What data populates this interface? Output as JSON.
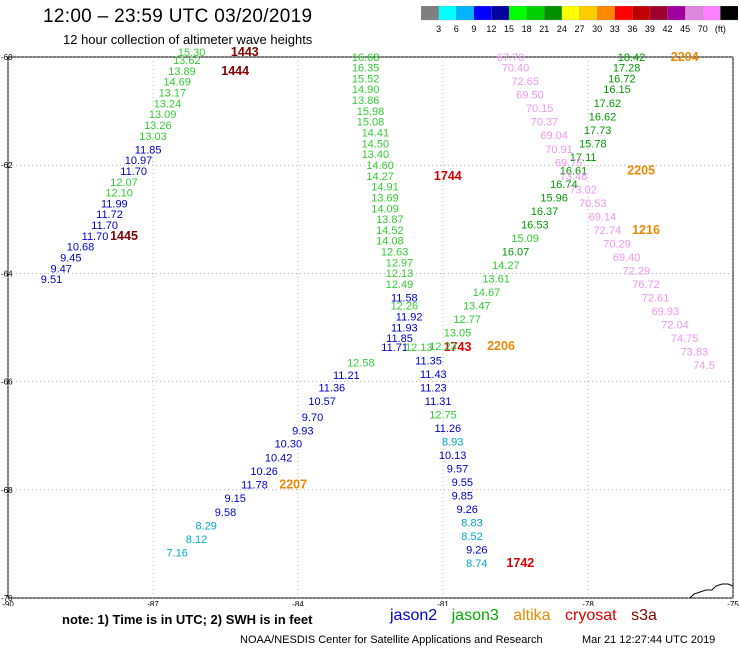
{
  "title": "12:00 – 23:59 UTC 03/20/2019",
  "subtitle": "12 hour collection of altimeter wave heights",
  "colorbar": {
    "colors": [
      "#7f7f7f",
      "#00ffff",
      "#00b4ff",
      "#0000ff",
      "#0000a0",
      "#00ff00",
      "#00d000",
      "#009000",
      "#ffff00",
      "#ffcc00",
      "#ff8800",
      "#ff0000",
      "#c00000",
      "#a00030",
      "#a000a0",
      "#dd88dd",
      "#ff80ff",
      "#000000"
    ],
    "labels": [
      "3",
      "6",
      "9",
      "12",
      "15",
      "18",
      "21",
      "24",
      "27",
      "30",
      "33",
      "36",
      "39",
      "42",
      "45",
      "70",
      "(ft)"
    ]
  },
  "axes": {
    "lon_ticks": [
      "-90",
      "-87",
      "-84",
      "-81",
      "-78",
      "-75"
    ],
    "lat_ticks": [
      "-60",
      "-62",
      "-64",
      "-66",
      "-68",
      "-70"
    ]
  },
  "tracks": {
    "altika_color": "#ee8800",
    "cryosat_color": "#dd0000",
    "s3a_color": "#800000",
    "track1_labels": [
      {
        "v": "15.30",
        "c": "#33cc33",
        "lon": -86.2,
        "lat": -59.98
      },
      {
        "v": "13.62",
        "c": "#33cc33",
        "lon": -86.3,
        "lat": -60.13
      },
      {
        "v": "13.89",
        "c": "#33cc33",
        "lon": -86.4,
        "lat": -60.33
      },
      {
        "v": "14.69",
        "c": "#33cc33",
        "lon": -86.5,
        "lat": -60.53
      },
      {
        "v": "13.17",
        "c": "#33cc33",
        "lon": -86.6,
        "lat": -60.73
      },
      {
        "v": "13.24",
        "c": "#33cc33",
        "lon": -86.7,
        "lat": -60.93
      },
      {
        "v": "13.09",
        "c": "#33cc33",
        "lon": -86.8,
        "lat": -61.13
      },
      {
        "v": "13.26",
        "c": "#33cc33",
        "lon": -86.9,
        "lat": -61.33
      },
      {
        "v": "13.03",
        "c": "#33cc33",
        "lon": -87.0,
        "lat": -61.53
      },
      {
        "v": "11.85",
        "c": "#0000cc",
        "lon": -87.1,
        "lat": -61.78
      },
      {
        "v": "10.97",
        "c": "#0000cc",
        "lon": -87.3,
        "lat": -61.98
      },
      {
        "v": "11.70",
        "c": "#0000cc",
        "lon": -87.4,
        "lat": -62.18
      },
      {
        "v": "12.07",
        "c": "#33cc33",
        "lon": -87.6,
        "lat": -62.38
      },
      {
        "v": "12.10",
        "c": "#33cc33",
        "lon": -87.7,
        "lat": -62.58
      },
      {
        "v": "11.99",
        "c": "#0000cc",
        "lon": -87.8,
        "lat": -62.78
      },
      {
        "v": "11.72",
        "c": "#0000cc",
        "lon": -87.9,
        "lat": -62.98
      },
      {
        "v": "11.70",
        "c": "#0000cc",
        "lon": -88.0,
        "lat": -63.18
      },
      {
        "v": "11.70",
        "c": "#0000cc",
        "lon": -88.2,
        "lat": -63.38
      },
      {
        "v": "10.68",
        "c": "#0000cc",
        "lon": -88.5,
        "lat": -63.58
      },
      {
        "v": "9.45",
        "c": "#0000cc",
        "lon": -88.7,
        "lat": -63.78
      },
      {
        "v": "9.47",
        "c": "#0000cc",
        "lon": -88.9,
        "lat": -63.98
      },
      {
        "v": "9.51",
        "c": "#0000cc",
        "lon": -89.1,
        "lat": -64.18
      }
    ],
    "track1_ids": [
      {
        "v": "1443",
        "c": "#800000",
        "lon": -85.1,
        "lat": -59.98
      },
      {
        "v": "1444",
        "c": "#800000",
        "lon": -85.3,
        "lat": -60.33
      },
      {
        "v": "1445",
        "c": "#800000",
        "lon": -87.6,
        "lat": -63.38
      }
    ],
    "track2_labels": [
      {
        "v": "16.68",
        "c": "#33cc33",
        "lon": -82.6,
        "lat": -60.07
      },
      {
        "v": "16.35",
        "c": "#33cc33",
        "lon": -82.6,
        "lat": -60.27
      },
      {
        "v": "15.52",
        "c": "#33cc33",
        "lon": -82.6,
        "lat": -60.47
      },
      {
        "v": "14.90",
        "c": "#33cc33",
        "lon": -82.6,
        "lat": -60.67
      },
      {
        "v": "13.86",
        "c": "#33cc33",
        "lon": -82.6,
        "lat": -60.87
      },
      {
        "v": "15.98",
        "c": "#33cc33",
        "lon": -82.5,
        "lat": -61.07
      },
      {
        "v": "15.08",
        "c": "#33cc33",
        "lon": -82.5,
        "lat": -61.27
      },
      {
        "v": "14.41",
        "c": "#33cc33",
        "lon": -82.4,
        "lat": -61.47
      },
      {
        "v": "14.50",
        "c": "#33cc33",
        "lon": -82.4,
        "lat": -61.67
      },
      {
        "v": "13.40",
        "c": "#33cc33",
        "lon": -82.4,
        "lat": -61.87
      },
      {
        "v": "14.60",
        "c": "#33cc33",
        "lon": -82.3,
        "lat": -62.07
      },
      {
        "v": "14.27",
        "c": "#33cc33",
        "lon": -82.3,
        "lat": -62.27
      },
      {
        "v": "14.91",
        "c": "#33cc33",
        "lon": -82.2,
        "lat": -62.47
      },
      {
        "v": "13.69",
        "c": "#33cc33",
        "lon": -82.2,
        "lat": -62.67
      },
      {
        "v": "14.09",
        "c": "#33cc33",
        "lon": -82.2,
        "lat": -62.87
      },
      {
        "v": "13.87",
        "c": "#33cc33",
        "lon": -82.1,
        "lat": -63.07
      },
      {
        "v": "14.52",
        "c": "#33cc33",
        "lon": -82.1,
        "lat": -63.27
      },
      {
        "v": "14.08",
        "c": "#33cc33",
        "lon": -82.1,
        "lat": -63.47
      },
      {
        "v": "12.63",
        "c": "#33cc33",
        "lon": -82.0,
        "lat": -63.67
      },
      {
        "v": "12.97",
        "c": "#33cc33",
        "lon": -81.9,
        "lat": -63.87
      },
      {
        "v": "12.13",
        "c": "#33cc33",
        "lon": -81.9,
        "lat": -64.07
      },
      {
        "v": "12.49",
        "c": "#33cc33",
        "lon": -81.9,
        "lat": -64.27
      },
      {
        "v": "11.58",
        "c": "#0000cc",
        "lon": -81.8,
        "lat": -64.52
      },
      {
        "v": "12.26",
        "c": "#33cc33",
        "lon": -81.8,
        "lat": -64.67
      },
      {
        "v": "11.92",
        "c": "#0000cc",
        "lon": -81.7,
        "lat": -64.87
      },
      {
        "v": "11.93",
        "c": "#0000cc",
        "lon": -81.8,
        "lat": -65.07
      },
      {
        "v": "11.85",
        "c": "#0000cc",
        "lon": -81.9,
        "lat": -65.27
      },
      {
        "v": "11.71",
        "c": "#0000cc",
        "lon": -82.0,
        "lat": -65.43
      }
    ],
    "track2_ids": [
      {
        "v": "1744",
        "c": "#dd0000",
        "lon": -80.9,
        "lat": -62.27
      }
    ],
    "track3_labels": [
      {
        "v": "12.58",
        "c": "#33cc33",
        "lon": -82.7,
        "lat": -65.72
      },
      {
        "v": "11.21",
        "c": "#0000cc",
        "lon": -83.0,
        "lat": -65.95
      },
      {
        "v": "11.36",
        "c": "#0000cc",
        "lon": -83.3,
        "lat": -66.18
      },
      {
        "v": "10.57",
        "c": "#0000cc",
        "lon": -83.5,
        "lat": -66.43
      },
      {
        "v": "9.70",
        "c": "#0000cc",
        "lon": -83.7,
        "lat": -66.73
      },
      {
        "v": "9.93",
        "c": "#0000cc",
        "lon": -83.9,
        "lat": -66.98
      },
      {
        "v": "10.30",
        "c": "#0000cc",
        "lon": -84.2,
        "lat": -67.22
      },
      {
        "v": "10.42",
        "c": "#0000cc",
        "lon": -84.4,
        "lat": -67.48
      },
      {
        "v": "10.26",
        "c": "#0000cc",
        "lon": -84.7,
        "lat": -67.73
      },
      {
        "v": "11.78",
        "c": "#0000cc",
        "lon": -84.9,
        "lat": -67.98
      },
      {
        "v": "9.15",
        "c": "#0000cc",
        "lon": -85.3,
        "lat": -68.23
      },
      {
        "v": "9.58",
        "c": "#0000cc",
        "lon": -85.5,
        "lat": -68.48
      },
      {
        "v": "8.29",
        "c": "#00aacc",
        "lon": -85.9,
        "lat": -68.73
      },
      {
        "v": "8.12",
        "c": "#00aacc",
        "lon": -86.1,
        "lat": -68.98
      },
      {
        "v": "7.16",
        "c": "#00aacc",
        "lon": -86.5,
        "lat": -69.23
      }
    ],
    "track3_ids": [
      {
        "v": "2207",
        "c": "#ee8800",
        "lon": -84.1,
        "lat": -67.98
      }
    ],
    "track4_labels": [
      {
        "v": "12.13",
        "c": "#33cc33",
        "lon": -81.5,
        "lat": -65.43
      },
      {
        "v": "11.35",
        "c": "#0000cc",
        "lon": -81.3,
        "lat": -65.68
      },
      {
        "v": "11.43",
        "c": "#0000cc",
        "lon": -81.2,
        "lat": -65.93
      },
      {
        "v": "11.23",
        "c": "#0000cc",
        "lon": -81.2,
        "lat": -66.18
      },
      {
        "v": "11.31",
        "c": "#0000cc",
        "lon": -81.1,
        "lat": -66.43
      },
      {
        "v": "12.75",
        "c": "#33cc33",
        "lon": -81.0,
        "lat": -66.68
      },
      {
        "v": "11.26",
        "c": "#0000cc",
        "lon": -80.9,
        "lat": -66.93
      },
      {
        "v": "8.93",
        "c": "#00aacc",
        "lon": -80.8,
        "lat": -67.18
      },
      {
        "v": "10.13",
        "c": "#0000cc",
        "lon": -80.8,
        "lat": -67.43
      },
      {
        "v": "9.57",
        "c": "#0000cc",
        "lon": -80.7,
        "lat": -67.68
      },
      {
        "v": "9.55",
        "c": "#0000cc",
        "lon": -80.6,
        "lat": -67.93
      },
      {
        "v": "9.85",
        "c": "#0000cc",
        "lon": -80.6,
        "lat": -68.18
      },
      {
        "v": "9.26",
        "c": "#0000cc",
        "lon": -80.5,
        "lat": -68.43
      },
      {
        "v": "8.83",
        "c": "#00aacc",
        "lon": -80.4,
        "lat": -68.68
      },
      {
        "v": "8.52",
        "c": "#00aacc",
        "lon": -80.4,
        "lat": -68.93
      },
      {
        "v": "9.26",
        "c": "#0000cc",
        "lon": -80.3,
        "lat": -69.18
      },
      {
        "v": "8.74",
        "c": "#00aacc",
        "lon": -80.3,
        "lat": -69.43
      }
    ],
    "track4_ids": [
      {
        "v": "1743",
        "c": "#dd0000",
        "lon": -80.7,
        "lat": -65.43
      },
      {
        "v": "1742",
        "c": "#dd0000",
        "lon": -79.4,
        "lat": -69.43
      }
    ],
    "track5_labels": [
      {
        "v": "18.42",
        "c": "#009900",
        "lon": -77.1,
        "lat": -60.07
      },
      {
        "v": "17.28",
        "c": "#009900",
        "lon": -77.2,
        "lat": -60.27
      },
      {
        "v": "16.72",
        "c": "#009900",
        "lon": -77.3,
        "lat": -60.47
      },
      {
        "v": "16.15",
        "c": "#009900",
        "lon": -77.4,
        "lat": -60.67
      },
      {
        "v": "17.62",
        "c": "#009900",
        "lon": -77.6,
        "lat": -60.92
      },
      {
        "v": "16.62",
        "c": "#009900",
        "lon": -77.7,
        "lat": -61.17
      },
      {
        "v": "17.73",
        "c": "#009900",
        "lon": -77.8,
        "lat": -61.42
      },
      {
        "v": "15.78",
        "c": "#009900",
        "lon": -77.9,
        "lat": -61.67
      },
      {
        "v": "17.11",
        "c": "#009900",
        "lon": -78.1,
        "lat": -61.92
      },
      {
        "v": "16.61",
        "c": "#009900",
        "lon": -78.3,
        "lat": -62.17
      },
      {
        "v": "16.74",
        "c": "#009900",
        "lon": -78.5,
        "lat": -62.42
      },
      {
        "v": "15.96",
        "c": "#009900",
        "lon": -78.7,
        "lat": -62.67
      },
      {
        "v": "16.37",
        "c": "#009900",
        "lon": -78.9,
        "lat": -62.92
      },
      {
        "v": "16.53",
        "c": "#009900",
        "lon": -79.1,
        "lat": -63.17
      },
      {
        "v": "15.09",
        "c": "#33cc33",
        "lon": -79.3,
        "lat": -63.42
      },
      {
        "v": "16.07",
        "c": "#009900",
        "lon": -79.5,
        "lat": -63.67
      },
      {
        "v": "14.27",
        "c": "#33cc33",
        "lon": -79.7,
        "lat": -63.92
      },
      {
        "v": "13.61",
        "c": "#33cc33",
        "lon": -79.9,
        "lat": -64.17
      },
      {
        "v": "14.67",
        "c": "#33cc33",
        "lon": -80.1,
        "lat": -64.42
      },
      {
        "v": "13.47",
        "c": "#33cc33",
        "lon": -80.3,
        "lat": -64.67
      },
      {
        "v": "12.77",
        "c": "#33cc33",
        "lon": -80.5,
        "lat": -64.92
      },
      {
        "v": "13.05",
        "c": "#33cc33",
        "lon": -80.7,
        "lat": -65.17
      },
      {
        "v": "12.23",
        "c": "#33cc33",
        "lon": -81.0,
        "lat": -65.42
      }
    ],
    "track5_ids": [
      {
        "v": "2204",
        "c": "#ee8800",
        "lon": -76.0,
        "lat": -60.07
      },
      {
        "v": "2205",
        "c": "#ee8800",
        "lon": -76.9,
        "lat": -62.17
      },
      {
        "v": "2206",
        "c": "#ee8800",
        "lon": -79.8,
        "lat": -65.42
      }
    ],
    "track6_labels": [
      {
        "v": "67.70",
        "c": "#ee99ee",
        "lon": -79.6,
        "lat": -60.07
      },
      {
        "v": "70.40",
        "c": "#ee99ee",
        "lon": -79.5,
        "lat": -60.27
      },
      {
        "v": "72.65",
        "c": "#ee99ee",
        "lon": -79.3,
        "lat": -60.52
      },
      {
        "v": "69.50",
        "c": "#ee99ee",
        "lon": -79.2,
        "lat": -60.77
      },
      {
        "v": "70.15",
        "c": "#ee99ee",
        "lon": -79.0,
        "lat": -61.02
      },
      {
        "v": "70.37",
        "c": "#ee99ee",
        "lon": -78.9,
        "lat": -61.27
      },
      {
        "v": "69.04",
        "c": "#ee99ee",
        "lon": -78.7,
        "lat": -61.52
      },
      {
        "v": "70.91",
        "c": "#ee99ee",
        "lon": -78.6,
        "lat": -61.77
      },
      {
        "v": "69.75",
        "c": "#ee99ee",
        "lon": -78.4,
        "lat": -62.02
      },
      {
        "v": "73.48",
        "c": "#ee99ee",
        "lon": -78.3,
        "lat": -62.27
      },
      {
        "v": "73.02",
        "c": "#ee99ee",
        "lon": -78.1,
        "lat": -62.52
      },
      {
        "v": "70.53",
        "c": "#ee99ee",
        "lon": -77.9,
        "lat": -62.77
      },
      {
        "v": "69.14",
        "c": "#ee99ee",
        "lon": -77.7,
        "lat": -63.02
      },
      {
        "v": "72.74",
        "c": "#ee99ee",
        "lon": -77.6,
        "lat": -63.27
      },
      {
        "v": "70.29",
        "c": "#ee99ee",
        "lon": -77.4,
        "lat": -63.52
      },
      {
        "v": "69.40",
        "c": "#ee99ee",
        "lon": -77.2,
        "lat": -63.77
      },
      {
        "v": "72.29",
        "c": "#ee99ee",
        "lon": -77.0,
        "lat": -64.02
      },
      {
        "v": "76.72",
        "c": "#ee99ee",
        "lon": -76.8,
        "lat": -64.27
      },
      {
        "v": "72.61",
        "c": "#ee99ee",
        "lon": -76.6,
        "lat": -64.52
      },
      {
        "v": "69.93",
        "c": "#ee99ee",
        "lon": -76.4,
        "lat": -64.77
      },
      {
        "v": "72.04",
        "c": "#ee99ee",
        "lon": -76.2,
        "lat": -65.02
      },
      {
        "v": "74.75",
        "c": "#ee99ee",
        "lon": -76.0,
        "lat": -65.27
      },
      {
        "v": "73.83",
        "c": "#ee99ee",
        "lon": -75.8,
        "lat": -65.52
      },
      {
        "v": "74.5",
        "c": "#ee99ee",
        "lon": -75.6,
        "lat": -65.77
      }
    ],
    "track6_ids": [
      {
        "v": "1216",
        "c": "#ee8800",
        "lon": -76.8,
        "lat": -63.27
      }
    ]
  },
  "note": "note:  1) Time is in UTC;  2) SWH is in feet",
  "legend": [
    {
      "name": "jason2",
      "color": "#0000cc"
    },
    {
      "name": "jason3",
      "color": "#00aa00"
    },
    {
      "name": "altika",
      "color": "#ee8800"
    },
    {
      "name": "cryosat",
      "color": "#dd0000"
    },
    {
      "name": "s3a",
      "color": "#800000"
    }
  ],
  "credit": "NOAA/NESDIS Center for Satellite Applications and Research",
  "timestamp": "Mar 21 12:27:44 UTC 2019"
}
